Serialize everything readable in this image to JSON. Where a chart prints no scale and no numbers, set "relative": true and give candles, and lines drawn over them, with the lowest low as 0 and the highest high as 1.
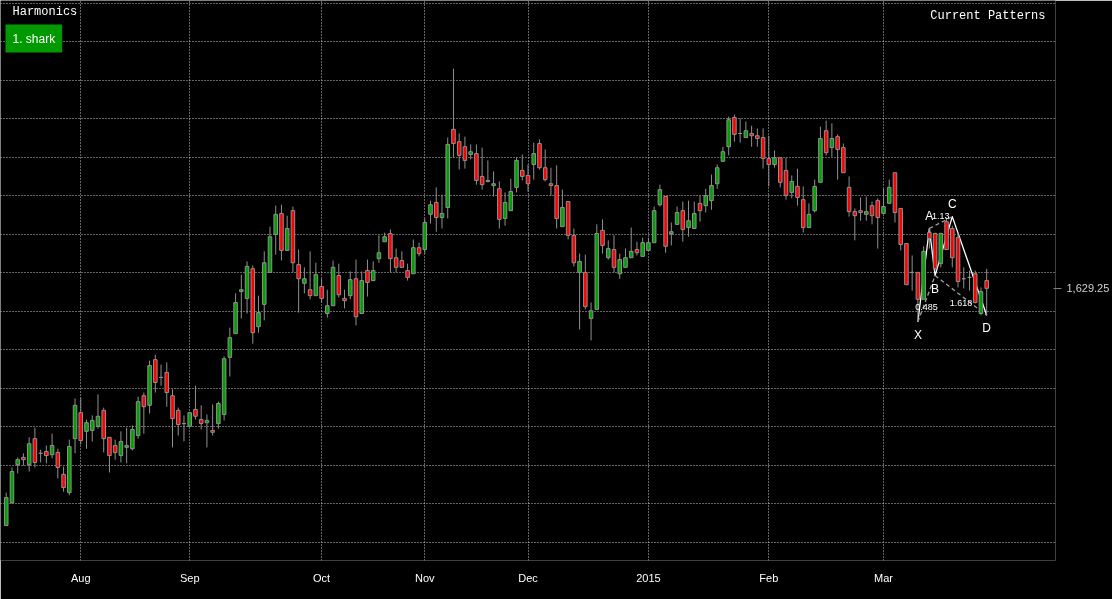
{
  "chart_data": {
    "type": "candlestick",
    "title": "Harmonics",
    "relative": true,
    "grid": true,
    "categories": [
      null,
      null,
      null,
      null,
      null,
      null,
      null,
      null,
      null,
      null,
      null,
      null,
      null,
      "Aug",
      null,
      null,
      null,
      null,
      null,
      null,
      null,
      null,
      null,
      null,
      null,
      null,
      null,
      null,
      null,
      null,
      null,
      null,
      "Sep",
      null,
      null,
      null,
      null,
      null,
      null,
      null,
      null,
      null,
      null,
      null,
      null,
      null,
      null,
      null,
      null,
      null,
      null,
      null,
      null,
      null,
      null,
      "Oct",
      null,
      null,
      null,
      null,
      null,
      null,
      null,
      null,
      null,
      null,
      null,
      null,
      null,
      null,
      null,
      null,
      null,
      "Nov",
      null,
      null,
      null,
      null,
      null,
      null,
      null,
      null,
      null,
      null,
      null,
      null,
      null,
      null,
      null,
      null,
      null,
      "Dec",
      null,
      null,
      null,
      null,
      null,
      null,
      null,
      null,
      null,
      null,
      null,
      null,
      null,
      null,
      null,
      null,
      null,
      null,
      null,
      null,
      "2015",
      null,
      null,
      null,
      null,
      null,
      null,
      null,
      null,
      null,
      null,
      null,
      null,
      null,
      null,
      null,
      null,
      null,
      null,
      null,
      null,
      "Feb",
      null,
      null,
      null,
      null,
      null,
      null,
      null,
      null,
      null,
      null,
      null,
      null,
      null,
      null,
      null,
      null,
      null,
      null,
      null,
      "Mar",
      null,
      null,
      null,
      null,
      null,
      null,
      null,
      null,
      null,
      null,
      null,
      null,
      null,
      null,
      null,
      null,
      null,
      null
    ],
    "ohlc": [
      [
        0,
        0.072,
        0,
        0.061
      ],
      [
        0.05,
        0.127,
        0.048,
        0.118
      ],
      [
        0.133,
        0.149,
        0.114,
        0.144
      ],
      [
        0.149,
        0.158,
        0.131,
        0.144
      ],
      [
        0.133,
        0.193,
        0.118,
        0.179
      ],
      [
        0.19,
        0.214,
        0.127,
        0.138
      ],
      [
        0.158,
        0.166,
        0.138,
        0.158
      ],
      [
        0.162,
        0.175,
        0.136,
        0.153
      ],
      [
        0.155,
        0.201,
        0.147,
        0.175
      ],
      [
        0.16,
        0.168,
        0.103,
        0.127
      ],
      [
        0.112,
        0.129,
        0.074,
        0.083
      ],
      [
        0.072,
        0.188,
        0.066,
        0.173
      ],
      [
        0.19,
        0.278,
        0.158,
        0.263
      ],
      [
        0.247,
        0.28,
        0.177,
        0.186
      ],
      [
        0.206,
        0.232,
        0.168,
        0.225
      ],
      [
        0.208,
        0.241,
        0.184,
        0.23
      ],
      [
        0.217,
        0.287,
        0.212,
        0.239
      ],
      [
        0.252,
        0.258,
        0.16,
        0.19
      ],
      [
        0.193,
        0.193,
        0.116,
        0.153
      ],
      [
        0.175,
        0.188,
        0.144,
        0.16
      ],
      [
        0.153,
        0.206,
        0.138,
        0.184
      ],
      [
        0.171,
        0.214,
        0.136,
        0.175
      ],
      [
        0.168,
        0.219,
        0.164,
        0.21
      ],
      [
        0.197,
        0.282,
        0.19,
        0.271
      ],
      [
        0.284,
        0.291,
        0.201,
        0.26
      ],
      [
        0.263,
        0.361,
        0.245,
        0.35
      ],
      [
        0.363,
        0.374,
        0.291,
        0.313
      ],
      [
        0.324,
        0.352,
        0.306,
        0.324
      ],
      [
        0.335,
        0.357,
        0.26,
        0.291
      ],
      [
        0.284,
        0.298,
        0.171,
        0.234
      ],
      [
        0.252,
        0.258,
        0.197,
        0.221
      ],
      [
        0.223,
        0.241,
        0.184,
        0.223
      ],
      [
        0.217,
        0.247,
        0.217,
        0.247
      ],
      [
        0.254,
        0.306,
        0.232,
        0.239
      ],
      [
        0.232,
        0.263,
        0.21,
        0.223
      ],
      [
        0.225,
        0.243,
        0.171,
        0.23
      ],
      [
        0.208,
        0.265,
        0.197,
        0.204
      ],
      [
        0.223,
        0.271,
        0.212,
        0.267
      ],
      [
        0.243,
        0.37,
        0.23,
        0.365
      ],
      [
        0.368,
        0.433,
        0.326,
        0.411
      ],
      [
        0.42,
        0.508,
        0.42,
        0.488
      ],
      [
        0.512,
        0.549,
        0.453,
        0.516
      ],
      [
        0.497,
        0.578,
        0.464,
        0.567
      ],
      [
        0.562,
        0.569,
        0.398,
        0.422
      ],
      [
        0.435,
        0.503,
        0.422,
        0.466
      ],
      [
        0.484,
        0.6,
        0.449,
        0.575
      ],
      [
        0.554,
        0.654,
        0.554,
        0.632
      ],
      [
        0.637,
        0.7,
        0.593,
        0.681
      ],
      [
        0.683,
        0.702,
        0.58,
        0.602
      ],
      [
        0.602,
        0.678,
        0.602,
        0.65
      ],
      [
        0.689,
        0.698,
        0.554,
        0.575
      ],
      [
        0.571,
        0.604,
        0.466,
        0.54
      ],
      [
        0.53,
        0.565,
        0.508,
        0.54
      ],
      [
        0.516,
        0.6,
        0.495,
        0.503
      ],
      [
        0.503,
        0.575,
        0.503,
        0.549
      ],
      [
        0.523,
        0.54,
        0.488,
        0.497
      ],
      [
        0.464,
        0.516,
        0.455,
        0.481
      ],
      [
        0.481,
        0.58,
        0.481,
        0.565
      ],
      [
        0.547,
        0.573,
        0.499,
        0.505
      ],
      [
        0.497,
        0.516,
        0.475,
        0.492
      ],
      [
        0.503,
        0.556,
        0.495,
        0.538
      ],
      [
        0.54,
        0.582,
        0.438,
        0.457
      ],
      [
        0.464,
        0.556,
        0.464,
        0.536
      ],
      [
        0.558,
        0.582,
        0.501,
        0.532
      ],
      [
        0.536,
        0.578,
        0.536,
        0.558
      ],
      [
        0.584,
        0.635,
        0.575,
        0.597
      ],
      [
        0.621,
        0.641,
        0.621,
        0.632
      ],
      [
        0.639,
        0.648,
        0.554,
        0.584
      ],
      [
        0.586,
        0.606,
        0.554,
        0.565
      ],
      [
        0.58,
        0.6,
        0.565,
        0.565
      ],
      [
        0.558,
        0.573,
        0.536,
        0.543
      ],
      [
        0.551,
        0.626,
        0.551,
        0.608
      ],
      [
        0.608,
        0.619,
        0.589,
        0.595
      ],
      [
        0.604,
        0.672,
        0.595,
        0.663
      ],
      [
        0.681,
        0.711,
        0.661,
        0.702
      ],
      [
        0.707,
        0.74,
        0.643,
        0.674
      ],
      [
        0.674,
        0.724,
        0.65,
        0.683
      ],
      [
        0.696,
        0.849,
        0.672,
        0.834
      ],
      [
        0.867,
        1,
        0.805,
        0.836
      ],
      [
        0.84,
        0.858,
        0.779,
        0.81
      ],
      [
        0.829,
        0.851,
        0.781,
        0.799
      ],
      [
        0.812,
        0.834,
        0.801,
        0.818
      ],
      [
        0.814,
        0.834,
        0.746,
        0.755
      ],
      [
        0.764,
        0.827,
        0.735,
        0.746
      ],
      [
        0.753,
        0.799,
        0.751,
        0.755
      ],
      [
        0.744,
        0.775,
        0.72,
        0.748
      ],
      [
        0.737,
        0.753,
        0.65,
        0.67
      ],
      [
        0.672,
        0.729,
        0.656,
        0.707
      ],
      [
        0.689,
        0.759,
        0.689,
        0.731
      ],
      [
        0.74,
        0.805,
        0.729,
        0.799
      ],
      [
        0.777,
        0.812,
        0.755,
        0.764
      ],
      [
        0.766,
        0.79,
        0.731,
        0.748
      ],
      [
        0.79,
        0.838,
        0.757,
        0.814
      ],
      [
        0.836,
        0.845,
        0.779,
        0.783
      ],
      [
        0.783,
        0.823,
        0.753,
        0.757
      ],
      [
        0.748,
        0.783,
        0.722,
        0.744
      ],
      [
        0.744,
        0.788,
        0.65,
        0.672
      ],
      [
        0.654,
        0.735,
        0.654,
        0.696
      ],
      [
        0.709,
        0.709,
        0.626,
        0.635
      ],
      [
        0.635,
        0.65,
        0.567,
        0.575
      ],
      [
        0.554,
        0.595,
        0.429,
        0.578
      ],
      [
        0.554,
        0.593,
        0.473,
        0.479
      ],
      [
        0.453,
        0.488,
        0.405,
        0.47
      ],
      [
        0.473,
        0.659,
        0.473,
        0.639
      ],
      [
        0.646,
        0.67,
        0.595,
        0.613
      ],
      [
        0.586,
        0.624,
        0.582,
        0.606
      ],
      [
        0.604,
        0.635,
        0.554,
        0.565
      ],
      [
        0.551,
        0.595,
        0.54,
        0.582
      ],
      [
        0.565,
        0.606,
        0.565,
        0.586
      ],
      [
        0.586,
        0.652,
        0.586,
        0.6
      ],
      [
        0.604,
        0.621,
        0.591,
        0.597
      ],
      [
        0.589,
        0.63,
        0.589,
        0.619
      ],
      [
        0.602,
        0.63,
        0.602,
        0.619
      ],
      [
        0.619,
        0.698,
        0.619,
        0.689
      ],
      [
        0.702,
        0.746,
        0.698,
        0.735
      ],
      [
        0.72,
        0.72,
        0.597,
        0.611
      ],
      [
        0.639,
        0.663,
        0.613,
        0.643
      ],
      [
        0.659,
        0.698,
        0.659,
        0.685
      ],
      [
        0.689,
        0.709,
        0.621,
        0.648
      ],
      [
        0.652,
        0.711,
        0.632,
        0.667
      ],
      [
        0.65,
        0.709,
        0.65,
        0.683
      ],
      [
        0.705,
        0.722,
        0.665,
        0.689
      ],
      [
        0.7,
        0.737,
        0.685,
        0.722
      ],
      [
        0.711,
        0.768,
        0.691,
        0.744
      ],
      [
        0.748,
        0.79,
        0.737,
        0.783
      ],
      [
        0.797,
        0.829,
        0.797,
        0.818
      ],
      [
        0.829,
        0.895,
        0.81,
        0.888
      ],
      [
        0.893,
        0.899,
        0.84,
        0.856
      ],
      [
        0.858,
        0.891,
        0.838,
        0.858
      ],
      [
        0.849,
        0.884,
        0.849,
        0.864
      ],
      [
        0.858,
        0.875,
        0.829,
        0.853
      ],
      [
        0.853,
        0.869,
        0.829,
        0.847
      ],
      [
        0.849,
        0.869,
        0.781,
        0.803
      ],
      [
        0.803,
        0.853,
        0.742,
        0.79
      ],
      [
        0.79,
        0.821,
        0.783,
        0.805
      ],
      [
        0.805,
        0.805,
        0.74,
        0.751
      ],
      [
        0.777,
        0.805,
        0.713,
        0.722
      ],
      [
        0.729,
        0.766,
        0.716,
        0.753
      ],
      [
        0.742,
        0.781,
        0.7,
        0.718
      ],
      [
        0.713,
        0.742,
        0.641,
        0.652
      ],
      [
        0.652,
        0.705,
        0.652,
        0.681
      ],
      [
        0.689,
        0.757,
        0.685,
        0.742
      ],
      [
        0.751,
        0.873,
        0.751,
        0.847
      ],
      [
        0.864,
        0.886,
        0.81,
        0.816
      ],
      [
        0.827,
        0.88,
        0.807,
        0.847
      ],
      [
        0.851,
        0.856,
        0.757,
        0.823
      ],
      [
        0.827,
        0.836,
        0.772,
        0.772
      ],
      [
        0.74,
        0.764,
        0.676,
        0.687
      ],
      [
        0.687,
        0.694,
        0.624,
        0.678
      ],
      [
        0.689,
        0.718,
        0.667,
        0.685
      ],
      [
        0.681,
        0.72,
        0.667,
        0.687
      ],
      [
        0.7,
        0.709,
        0.659,
        0.678
      ],
      [
        0.711,
        0.716,
        0.606,
        0.674
      ],
      [
        0.683,
        0.737,
        0.683,
        0.698
      ],
      [
        0.705,
        0.757,
        0.705,
        0.74
      ],
      [
        0.772,
        0.772,
        0.663,
        0.685
      ],
      [
        0.694,
        0.694,
        0.602,
        0.615
      ],
      [
        0.617,
        0.617,
        0.527,
        0.527
      ],
      [
        0.554,
        0.591,
        0.514,
        0.554
      ],
      [
        0.554,
        0.554,
        0.446,
        0.495
      ],
      [
        0.495,
        0.611,
        0.495,
        0.6
      ],
      [
        0.641,
        0.65,
        0.606,
        0.628
      ],
      [
        0.639,
        0.641,
        0.558,
        0.562
      ],
      [
        0.573,
        0.641,
        0.565,
        0.639
      ],
      [
        0.665,
        0.674,
        0.604,
        0.604
      ],
      [
        0.65,
        0.656,
        0.565,
        0.586
      ],
      [
        0.63,
        0.641,
        0.521,
        0.534
      ],
      [
        0.54,
        0.565,
        0.519,
        0.54
      ],
      [
        0.543,
        0.558,
        0.514,
        0.543
      ],
      [
        0.551,
        0.558,
        0.486,
        0.488
      ],
      [
        0.464,
        0.521,
        0.46,
        0.512
      ],
      [
        0.536,
        0.562,
        0.46,
        0.519
      ]
    ],
    "series": [
      {
        "type": "line",
        "color": "#ffffff",
        "values": [
          null,
          null,
          null,
          null,
          null,
          null,
          null,
          null,
          null,
          null,
          null,
          null,
          null,
          null,
          null,
          null,
          null,
          null,
          null,
          null,
          null,
          null,
          null,
          null,
          null,
          null,
          null,
          null,
          null,
          null,
          null,
          null,
          null,
          null,
          null,
          null,
          null,
          null,
          null,
          null,
          null,
          null,
          null,
          null,
          null,
          null,
          null,
          null,
          null,
          null,
          null,
          null,
          null,
          null,
          null,
          null,
          null,
          null,
          null,
          null,
          null,
          null,
          null,
          null,
          null,
          null,
          null,
          null,
          null,
          null,
          null,
          null,
          null,
          null,
          null,
          null,
          null,
          null,
          null,
          null,
          null,
          null,
          null,
          null,
          null,
          null,
          null,
          null,
          null,
          null,
          null,
          null,
          null,
          null,
          null,
          null,
          null,
          null,
          null,
          null,
          null,
          null,
          null,
          null,
          null,
          null,
          null,
          null,
          null,
          null,
          null,
          null,
          null,
          null,
          null,
          null,
          null,
          null,
          null,
          null,
          null,
          null,
          null,
          null,
          null,
          null,
          null,
          null,
          null,
          null,
          null,
          null,
          null,
          null,
          null,
          null,
          null,
          null,
          null,
          null,
          null,
          null,
          null,
          null,
          null,
          null,
          null,
          null,
          null,
          null,
          null,
          null,
          null,
          null,
          null,
          null,
          null,
          null,
          null,
          0.446,
          null,
          0.65,
          0.547,
          null,
          null,
          0.676,
          null,
          null,
          null,
          null,
          null,
          0.46
        ]
      },
      {
        "type": "line",
        "color": "#a0a0a0",
        "line_style": "dashed",
        "values": [
          null,
          null,
          null,
          null,
          null,
          null,
          null,
          null,
          null,
          null,
          null,
          null,
          null,
          null,
          null,
          null,
          null,
          null,
          null,
          null,
          null,
          null,
          null,
          null,
          null,
          null,
          null,
          null,
          null,
          null,
          null,
          null,
          null,
          null,
          null,
          null,
          null,
          null,
          null,
          null,
          null,
          null,
          null,
          null,
          null,
          null,
          null,
          null,
          null,
          null,
          null,
          null,
          null,
          null,
          null,
          null,
          null,
          null,
          null,
          null,
          null,
          null,
          null,
          null,
          null,
          null,
          null,
          null,
          null,
          null,
          null,
          null,
          null,
          null,
          null,
          null,
          null,
          null,
          null,
          null,
          null,
          null,
          null,
          null,
          null,
          null,
          null,
          null,
          null,
          null,
          null,
          null,
          null,
          null,
          null,
          null,
          null,
          null,
          null,
          null,
          null,
          null,
          null,
          null,
          null,
          null,
          null,
          null,
          null,
          null,
          null,
          null,
          null,
          null,
          null,
          null,
          null,
          null,
          null,
          null,
          null,
          null,
          null,
          null,
          null,
          null,
          null,
          null,
          null,
          null,
          null,
          null,
          null,
          null,
          null,
          null,
          null,
          null,
          null,
          null,
          null,
          null,
          null,
          null,
          null,
          null,
          null,
          null,
          null,
          null,
          null,
          null,
          null,
          null,
          null,
          null,
          null,
          null,
          null,
          null,
          null,
          0.65,
          null,
          null,
          null,
          0.676,
          null,
          null,
          null,
          null,
          null,
          null
        ]
      },
      {
        "type": "line",
        "color": "#a0a0a0",
        "line_style": "dashed",
        "values": [
          null,
          null,
          null,
          null,
          null,
          null,
          null,
          null,
          null,
          null,
          null,
          null,
          null,
          null,
          null,
          null,
          null,
          null,
          null,
          null,
          null,
          null,
          null,
          null,
          null,
          null,
          null,
          null,
          null,
          null,
          null,
          null,
          null,
          null,
          null,
          null,
          null,
          null,
          null,
          null,
          null,
          null,
          null,
          null,
          null,
          null,
          null,
          null,
          null,
          null,
          null,
          null,
          null,
          null,
          null,
          null,
          null,
          null,
          null,
          null,
          null,
          null,
          null,
          null,
          null,
          null,
          null,
          null,
          null,
          null,
          null,
          null,
          null,
          null,
          null,
          null,
          null,
          null,
          null,
          null,
          null,
          null,
          null,
          null,
          null,
          null,
          null,
          null,
          null,
          null,
          null,
          null,
          null,
          null,
          null,
          null,
          null,
          null,
          null,
          null,
          null,
          null,
          null,
          null,
          null,
          null,
          null,
          null,
          null,
          null,
          null,
          null,
          null,
          null,
          null,
          null,
          null,
          null,
          null,
          null,
          null,
          null,
          null,
          null,
          null,
          null,
          null,
          null,
          null,
          null,
          null,
          null,
          null,
          null,
          null,
          null,
          null,
          null,
          null,
          null,
          null,
          null,
          null,
          null,
          null,
          null,
          null,
          null,
          null,
          null,
          null,
          null,
          null,
          null,
          null,
          null,
          null,
          null,
          null,
          0.446,
          null,
          null,
          0.547,
          null,
          null,
          null,
          null,
          null,
          null,
          null,
          null,
          null
        ]
      },
      {
        "type": "line",
        "color": "#a0a0a0",
        "line_style": "dashed",
        "values": [
          null,
          null,
          null,
          null,
          null,
          null,
          null,
          null,
          null,
          null,
          null,
          null,
          null,
          null,
          null,
          null,
          null,
          null,
          null,
          null,
          null,
          null,
          null,
          null,
          null,
          null,
          null,
          null,
          null,
          null,
          null,
          null,
          null,
          null,
          null,
          null,
          null,
          null,
          null,
          null,
          null,
          null,
          null,
          null,
          null,
          null,
          null,
          null,
          null,
          null,
          null,
          null,
          null,
          null,
          null,
          null,
          null,
          null,
          null,
          null,
          null,
          null,
          null,
          null,
          null,
          null,
          null,
          null,
          null,
          null,
          null,
          null,
          null,
          null,
          null,
          null,
          null,
          null,
          null,
          null,
          null,
          null,
          null,
          null,
          null,
          null,
          null,
          null,
          null,
          null,
          null,
          null,
          null,
          null,
          null,
          null,
          null,
          null,
          null,
          null,
          null,
          null,
          null,
          null,
          null,
          null,
          null,
          null,
          null,
          null,
          null,
          null,
          null,
          null,
          null,
          null,
          null,
          null,
          null,
          null,
          null,
          null,
          null,
          null,
          null,
          null,
          null,
          null,
          null,
          null,
          null,
          null,
          null,
          null,
          null,
          null,
          null,
          null,
          null,
          null,
          null,
          null,
          null,
          null,
          null,
          null,
          null,
          null,
          null,
          null,
          null,
          null,
          null,
          null,
          null,
          null,
          null,
          null,
          null,
          null,
          null,
          null,
          0.547,
          null,
          null,
          null,
          null,
          null,
          null,
          null,
          null,
          0.46
        ]
      }
    ],
    "annotations": [
      "1. shark",
      "Current Patterns",
      "X",
      "A",
      "B",
      "C",
      "D",
      "1.13",
      "0.485",
      "1.618",
      "1,629.25"
    ]
  }
}
